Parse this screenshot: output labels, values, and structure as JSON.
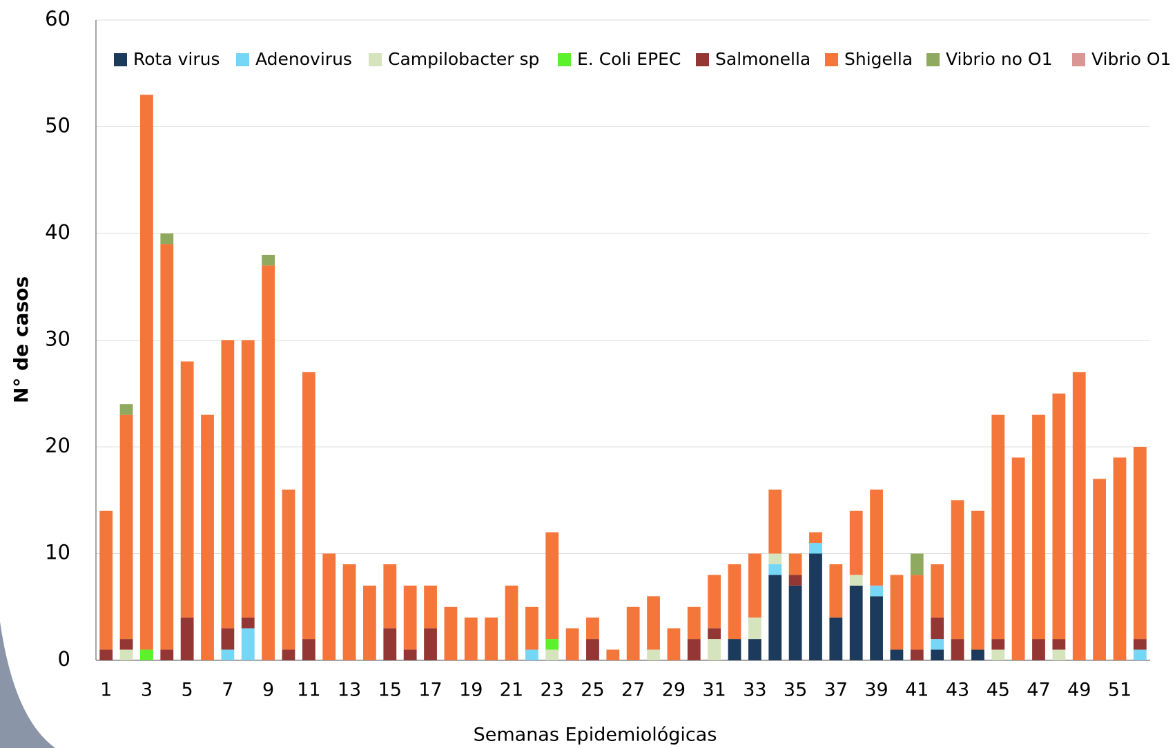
{
  "chart_data": {
    "type": "stacked_bar",
    "x_label": "Semanas Epidemiológicas",
    "y_label": "N° de casos",
    "categories": [
      "1",
      null,
      "3",
      null,
      "5",
      null,
      "7",
      null,
      "9",
      null,
      "11",
      null,
      "13",
      null,
      "15",
      null,
      "17",
      null,
      "19",
      null,
      "21",
      null,
      "23",
      null,
      "25",
      null,
      "27",
      null,
      "29",
      null,
      "31",
      null,
      "33",
      null,
      "35",
      null,
      "37",
      null,
      "39",
      null,
      "41",
      null,
      "43",
      null,
      "45",
      null,
      "47",
      null,
      "49",
      null,
      "51",
      null
    ],
    "series": [
      {
        "name": "Rota virus",
        "color": "#1b3a5c",
        "values": [
          0,
          0,
          0,
          0,
          0,
          0,
          0,
          0,
          0,
          0,
          0,
          0,
          0,
          0,
          0,
          0,
          0,
          0,
          0,
          0,
          0,
          0,
          0,
          0,
          0,
          0,
          0,
          0,
          0,
          0,
          0,
          2,
          2,
          8,
          7,
          10,
          4,
          7,
          6,
          1,
          0,
          1,
          0,
          1,
          0,
          0,
          0,
          0,
          0,
          0,
          0,
          0
        ]
      },
      {
        "name": "Adenovirus",
        "color": "#76d6f5",
        "values": [
          0,
          0,
          0,
          0,
          0,
          0,
          1,
          3,
          0,
          0,
          0,
          0,
          0,
          0,
          0,
          0,
          0,
          0,
          0,
          0,
          0,
          1,
          0,
          0,
          0,
          0,
          0,
          0,
          0,
          0,
          0,
          0,
          0,
          1,
          0,
          1,
          0,
          0,
          1,
          0,
          0,
          1,
          0,
          0,
          0,
          0,
          0,
          0,
          0,
          0,
          0,
          1
        ]
      },
      {
        "name": "Campilobacter sp",
        "color": "#d6e4bd",
        "values": [
          0,
          1,
          0,
          0,
          0,
          0,
          0,
          0,
          0,
          0,
          0,
          0,
          0,
          0,
          0,
          0,
          0,
          0,
          0,
          0,
          0,
          0,
          1,
          0,
          0,
          0,
          0,
          1,
          0,
          0,
          2,
          0,
          2,
          1,
          0,
          0,
          0,
          1,
          0,
          0,
          0,
          0,
          0,
          0,
          1,
          0,
          0,
          1,
          0,
          0,
          0,
          0
        ]
      },
      {
        "name": "E. Coli EPEC",
        "color": "#5cf22b",
        "values": [
          0,
          0,
          1,
          0,
          0,
          0,
          0,
          0,
          0,
          0,
          0,
          0,
          0,
          0,
          0,
          0,
          0,
          0,
          0,
          0,
          0,
          0,
          1,
          0,
          0,
          0,
          0,
          0,
          0,
          0,
          0,
          0,
          0,
          0,
          0,
          0,
          0,
          0,
          0,
          0,
          0,
          0,
          0,
          0,
          0,
          0,
          0,
          0,
          0,
          0,
          0,
          0
        ]
      },
      {
        "name": "Salmonella",
        "color": "#943634",
        "values": [
          1,
          1,
          0,
          1,
          4,
          0,
          2,
          1,
          0,
          1,
          2,
          0,
          0,
          0,
          3,
          1,
          3,
          0,
          0,
          0,
          0,
          0,
          0,
          0,
          2,
          0,
          0,
          0,
          0,
          2,
          1,
          0,
          0,
          0,
          1,
          0,
          0,
          0,
          0,
          0,
          1,
          2,
          2,
          0,
          1,
          0,
          2,
          1,
          0,
          0,
          0,
          1
        ]
      },
      {
        "name": "Shigella",
        "color": "#f5763b",
        "values": [
          13,
          21,
          52,
          38,
          24,
          23,
          27,
          26,
          37,
          15,
          25,
          10,
          9,
          7,
          6,
          6,
          4,
          5,
          4,
          4,
          7,
          4,
          10,
          3,
          2,
          1,
          5,
          5,
          3,
          3,
          5,
          7,
          6,
          6,
          2,
          1,
          5,
          6,
          9,
          7,
          7,
          5,
          13,
          13,
          21,
          19,
          21,
          23,
          27,
          17,
          19,
          18
        ]
      },
      {
        "name": "Vibrio no O1",
        "color": "#8faa5e",
        "values": [
          0,
          1,
          0,
          1,
          0,
          0,
          0,
          0,
          1,
          0,
          0,
          0,
          0,
          0,
          0,
          0,
          0,
          0,
          0,
          0,
          0,
          0,
          0,
          0,
          0,
          0,
          0,
          0,
          0,
          0,
          0,
          0,
          0,
          0,
          0,
          0,
          0,
          0,
          0,
          0,
          2,
          0,
          0,
          0,
          0,
          0,
          0,
          0,
          0,
          0,
          0,
          0
        ]
      },
      {
        "name": "Vibrio O1",
        "color": "#d99694",
        "values": [
          0,
          0,
          0,
          0,
          0,
          0,
          0,
          0,
          0,
          0,
          0,
          0,
          0,
          0,
          0,
          0,
          0,
          0,
          0,
          0,
          0,
          0,
          0,
          0,
          0,
          0,
          0,
          0,
          0,
          0,
          0,
          0,
          0,
          0,
          0,
          0,
          0,
          0,
          0,
          0,
          0,
          0,
          0,
          0,
          0,
          0,
          0,
          0,
          0,
          0,
          0,
          0
        ]
      }
    ],
    "ylim": [
      0,
      60
    ],
    "yticks": [
      0,
      10,
      20,
      30,
      40,
      50,
      60
    ],
    "grid": true,
    "legend": "top"
  }
}
